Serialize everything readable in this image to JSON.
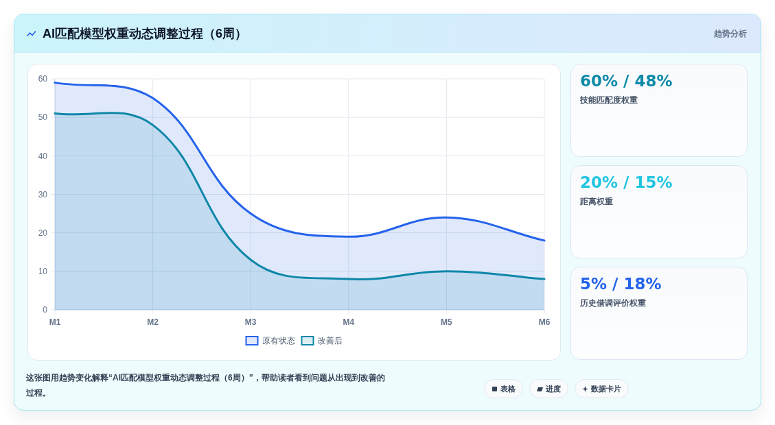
{
  "chart_data": [
    {
      "type": "area",
      "title": "AI匹配模型权重动态调整过程（6周）",
      "categories": [
        "M1",
        "M2",
        "M3",
        "M4",
        "M5",
        "M6"
      ],
      "series": [
        {
          "name": "原有状态",
          "color": "#2563eb",
          "values": [
            59,
            55,
            25,
            19,
            24,
            18
          ]
        },
        {
          "name": "改善后",
          "color": "#0e87a8",
          "values": [
            51,
            48,
            13,
            8,
            10,
            8
          ]
        }
      ],
      "ylim": [
        0,
        60
      ],
      "yticks": [
        0,
        10,
        20,
        30,
        40,
        50,
        60
      ],
      "grid": true,
      "legend": "bottom",
      "annotations": [
        "这张图用趋势变化解释“AI匹配模型权重动态调整过程（6周）”，帮助读者看到问题从出现到改善的过程。",
        "表格",
        "进度",
        "数据卡片"
      ]
    },
    {
      "type": "other",
      "title": "60% / 48%",
      "subtitle": "技能匹配度权重",
      "color": "#0e8aa8",
      "annotations": [
        "趋势分析"
      ]
    },
    {
      "type": "other",
      "title": "20% / 15%",
      "subtitle": "距离权重",
      "color": "#22c5e0"
    },
    {
      "type": "other",
      "title": "5% / 18%",
      "subtitle": "历史借调评价权重",
      "color": "#2563eb"
    }
  ]
}
